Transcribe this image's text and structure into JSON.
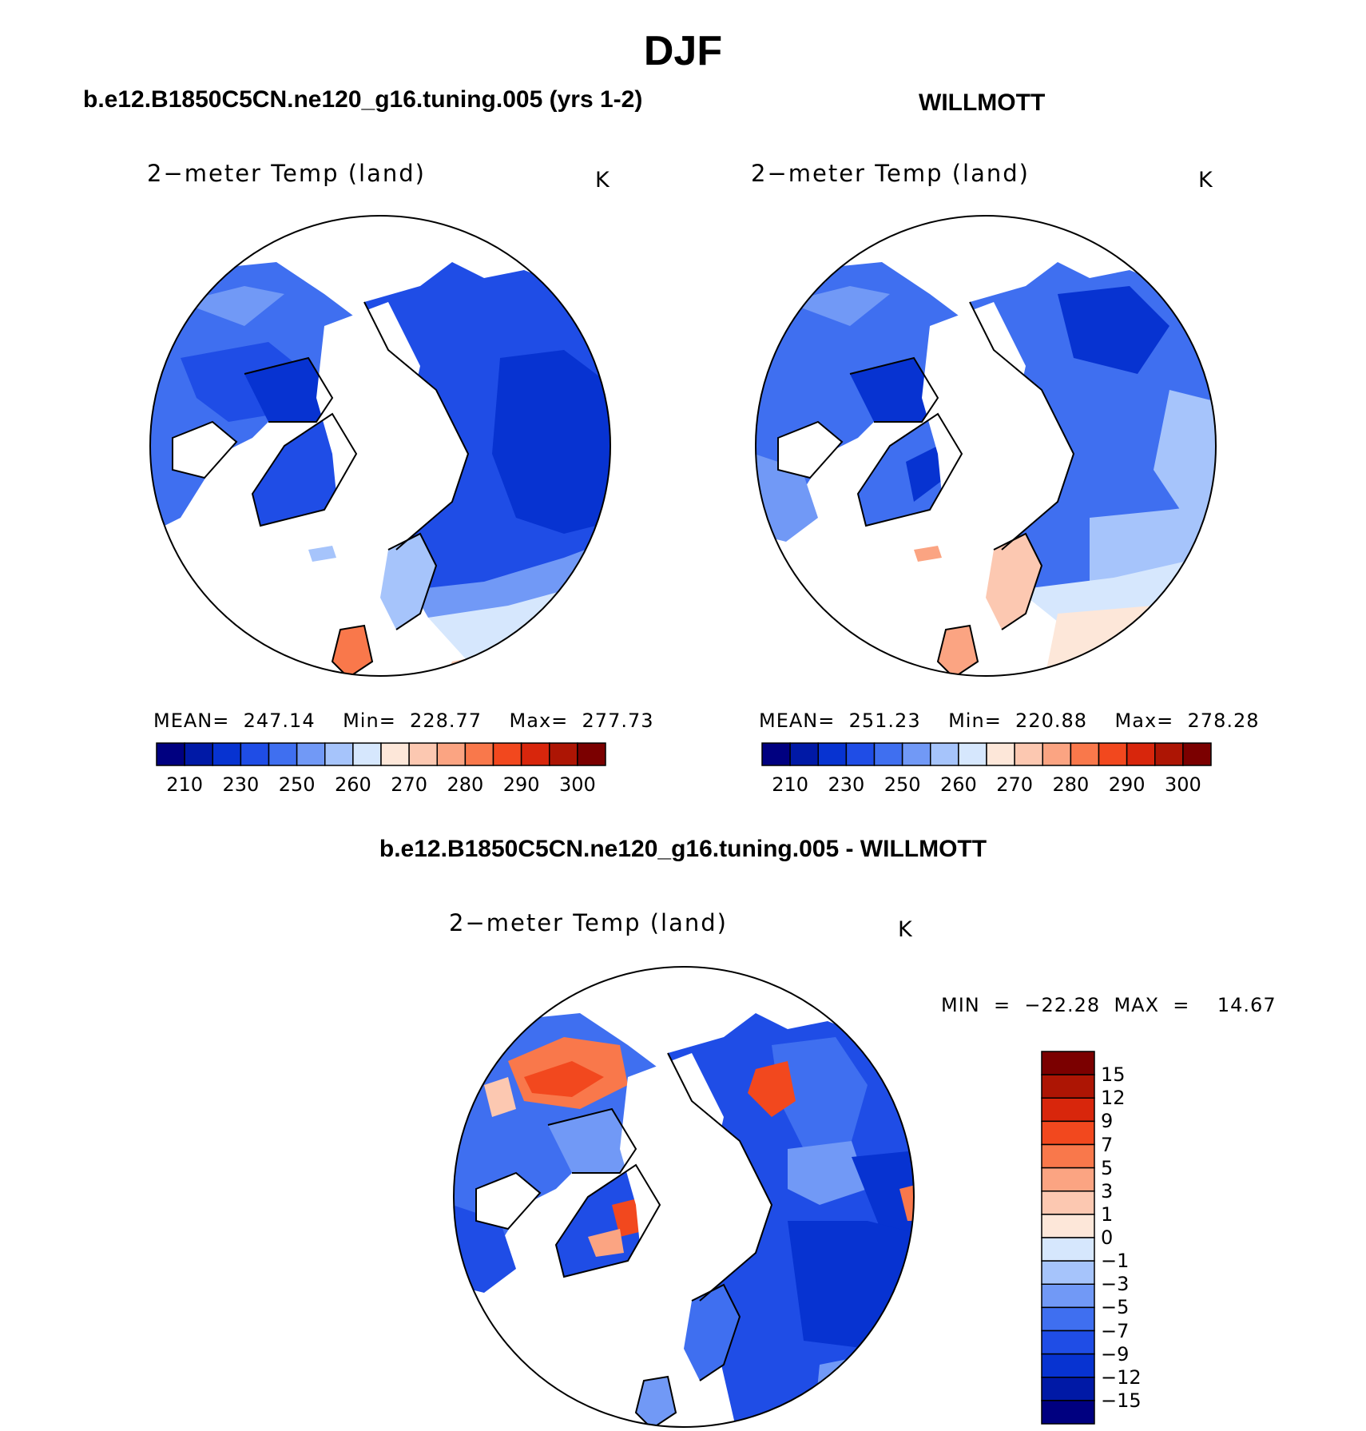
{
  "figure": {
    "title": "DJF",
    "diff_title": "b.e12.B1850C5CN.ne120_g16.tuning.005 - WILLMOTT"
  },
  "panels": [
    {
      "title": "b.e12.B1850C5CN.ne120_g16.tuning.005 (yrs 1-2)",
      "variable": "2−meter Temp (land)",
      "units": "K",
      "stats": "MEAN=  247.14    Min=  228.77    Max=  277.73"
    },
    {
      "title": "WILLMOTT",
      "variable": "2−meter Temp (land)",
      "units": "K",
      "stats": "MEAN=  251.23    Min=  220.88    Max=  278.28"
    }
  ],
  "diff_panel": {
    "variable": "2−meter Temp (land)",
    "units": "K",
    "stats": "MIN  =  −22.28  MAX  =    14.67"
  },
  "colorbar_abs": {
    "colors": [
      "#000080",
      "#0019a6",
      "#0733d1",
      "#1f4de6",
      "#3f6ff0",
      "#7199f6",
      "#a6c4fb",
      "#d6e7fd",
      "#fde7d9",
      "#fcc8b1",
      "#fba482",
      "#f9784b",
      "#f2481e",
      "#d8260c",
      "#ad1504",
      "#7b0000"
    ],
    "tick_labels": [
      "210",
      "230",
      "250",
      "260",
      "270",
      "280",
      "290",
      "300"
    ]
  },
  "colorbar_diff": {
    "colors": [
      "#7b0000",
      "#ad1504",
      "#d8260c",
      "#f2481e",
      "#f9784b",
      "#fba482",
      "#fcc8b1",
      "#fde7d9",
      "#d6e7fd",
      "#a6c4fb",
      "#7199f6",
      "#3f6ff0",
      "#1f4de6",
      "#0733d1",
      "#0019a6",
      "#000080"
    ],
    "tick_labels": [
      "15",
      "12",
      "9",
      "7",
      "5",
      "3",
      "1",
      "0",
      "−1",
      "−3",
      "−5",
      "−7",
      "−9",
      "−12",
      "−15"
    ]
  }
}
